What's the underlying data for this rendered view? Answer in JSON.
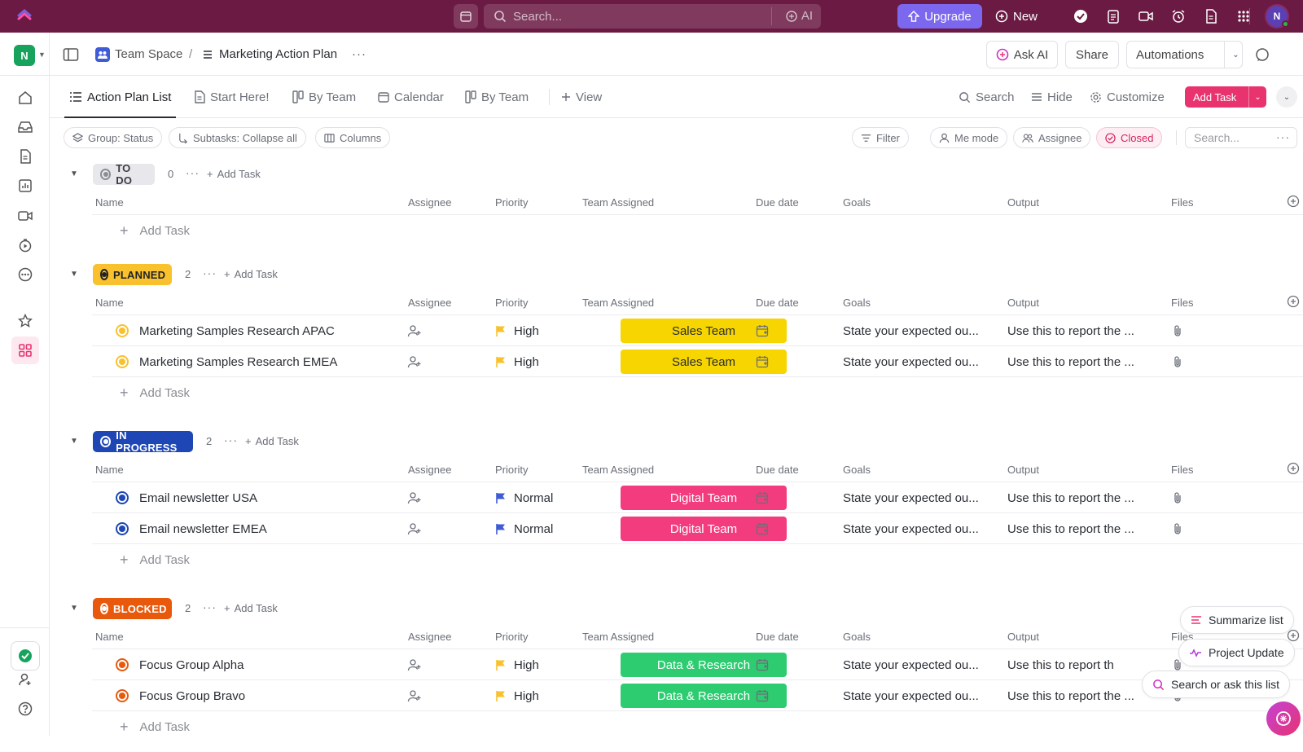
{
  "topbar": {
    "search_placeholder": "Search...",
    "ai_label": "AI",
    "upgrade_label": "Upgrade",
    "new_label": "New",
    "avatar_initial": "N"
  },
  "sidebar": {
    "workspace_initial": "N"
  },
  "header": {
    "space": "Team Space",
    "separator": "/",
    "list_name": "Marketing Action Plan",
    "more": "···",
    "ask_ai": "Ask AI",
    "share": "Share",
    "automations": "Automations"
  },
  "views": {
    "tabs": [
      "Action Plan List",
      "Start Here!",
      "By Team",
      "Calendar",
      "By Team",
      "View"
    ],
    "search": "Search",
    "hide": "Hide",
    "customize": "Customize",
    "add_task": "Add Task"
  },
  "filters": {
    "group": "Group: Status",
    "subtasks": "Subtasks: Collapse all",
    "columns": "Columns",
    "filter": "Filter",
    "me_mode": "Me mode",
    "assignee": "Assignee",
    "closed": "Closed",
    "search_placeholder": "Search..."
  },
  "columns": [
    "Name",
    "Assignee",
    "Priority",
    "Team Assigned",
    "Due date",
    "Goals",
    "Output",
    "Files"
  ],
  "add_task_label": "Add Task",
  "groups": [
    {
      "status": "TO DO",
      "count": "0",
      "color": "#e8e8ec",
      "text_color": "#3a3d44",
      "tasks": []
    },
    {
      "status": "PLANNED",
      "count": "2",
      "color": "#f8c12d",
      "text_color": "#1f2228",
      "tasks": [
        {
          "name": "Marketing Samples Research APAC",
          "priority": "High",
          "team": "Sales Team",
          "goals": "State your expected ou...",
          "output": "Use this to report the ..."
        },
        {
          "name": "Marketing Samples Research EMEA",
          "priority": "High",
          "team": "Sales Team",
          "goals": "State your expected ou...",
          "output": "Use this to report the ..."
        }
      ]
    },
    {
      "status": "IN PROGRESS",
      "count": "2",
      "color": "#1e47b5",
      "text_color": "#ffffff",
      "tasks": [
        {
          "name": "Email newsletter USA",
          "priority": "Normal",
          "team": "Digital Team",
          "goals": "State your expected ou...",
          "output": "Use this to report the ..."
        },
        {
          "name": "Email newsletter EMEA",
          "priority": "Normal",
          "team": "Digital Team",
          "goals": "State your expected ou...",
          "output": "Use this to report the ..."
        }
      ]
    },
    {
      "status": "BLOCKED",
      "count": "2",
      "color": "#e8590c",
      "text_color": "#ffffff",
      "tasks": [
        {
          "name": "Focus Group Alpha",
          "priority": "High",
          "team": "Data & Research",
          "goals": "State your expected ou...",
          "output": "Use this to report th"
        },
        {
          "name": "Focus Group Bravo",
          "priority": "High",
          "team": "Data & Research",
          "goals": "State your expected ou...",
          "output": "Use this to report the ..."
        }
      ]
    }
  ],
  "team_colors": {
    "Sales Team": {
      "bg": "#f7d500",
      "fg": "#292d34"
    },
    "Digital Team": {
      "bg": "#f23c7e",
      "fg": "#ffffff"
    },
    "Data & Research": {
      "bg": "#2ecc71",
      "fg": "#ffffff"
    }
  },
  "priority_colors": {
    "High": "#f8c12d",
    "Normal": "#3f5bd6"
  },
  "floating": {
    "summarize": "Summarize list",
    "project_update": "Project Update",
    "search_ask": "Search or ask this list"
  }
}
